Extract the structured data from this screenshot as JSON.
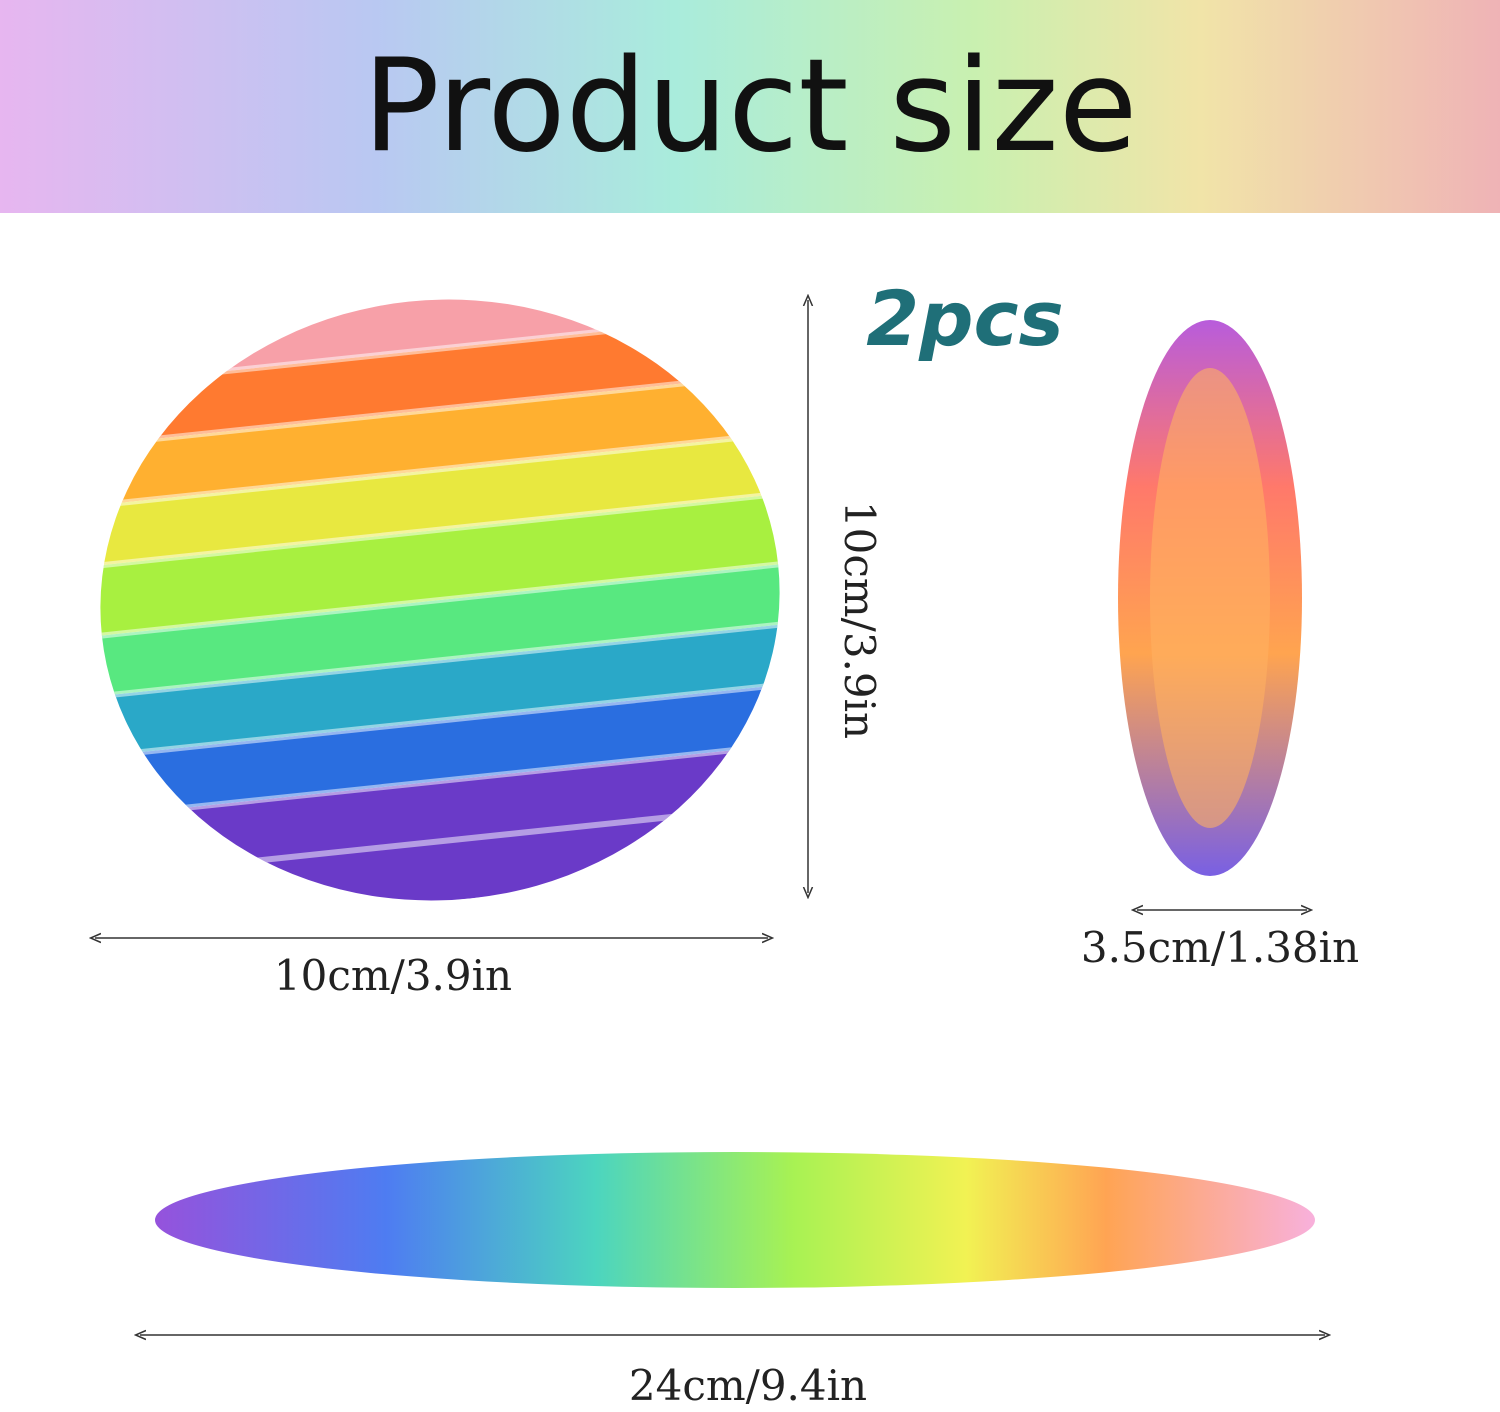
{
  "header": {
    "title": "Product size"
  },
  "quantity": "2pcs",
  "dimensions": {
    "ball_height": "10cm/3.9in",
    "ball_width": "10cm/3.9in",
    "flat_width": "3.5cm/1.38in",
    "stretched_length": "24cm/9.4in"
  }
}
